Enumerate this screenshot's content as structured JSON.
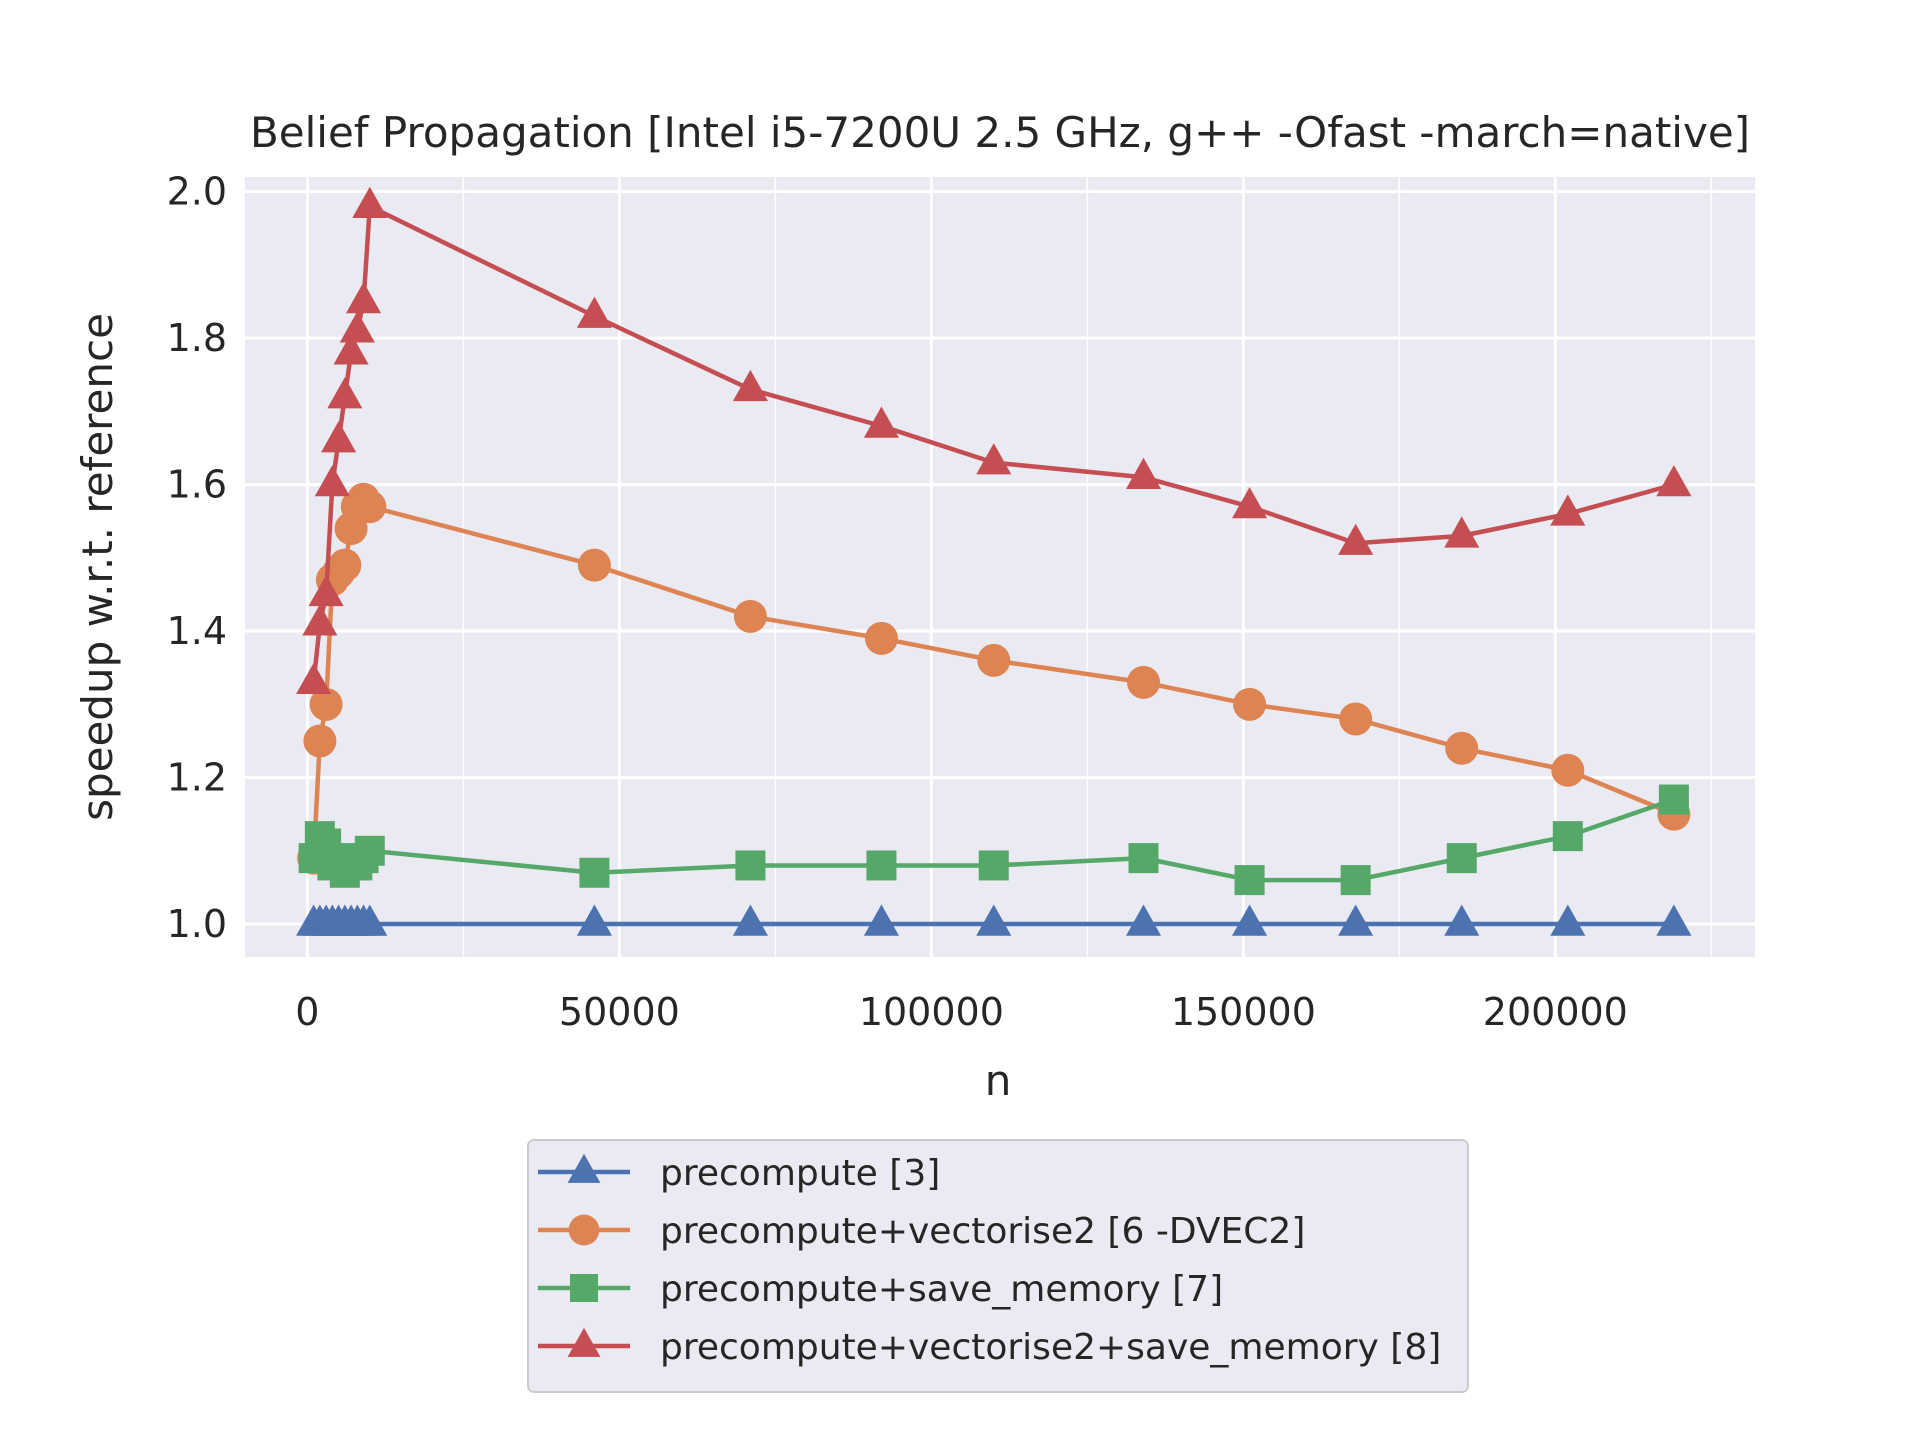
{
  "chart_data": {
    "type": "line",
    "title": "Belief Propagation [Intel i5-7200U 2.5 GHz, g++ -Ofast -march=native]",
    "xlabel": "n",
    "ylabel": "speedup w.r.t. reference",
    "xlim": [
      -10000,
      232000
    ],
    "ylim": [
      0.955,
      2.02
    ],
    "xticks": [
      0,
      50000,
      100000,
      150000,
      200000
    ],
    "xtick_labels": [
      "0",
      "50000",
      "100000",
      "150000",
      "200000"
    ],
    "yticks": [
      1.0,
      1.2,
      1.4,
      1.6,
      1.8,
      2.0
    ],
    "ytick_labels": [
      "1.0",
      "1.2",
      "1.4",
      "1.6",
      "1.8",
      "2.0"
    ],
    "grid": true,
    "legend_position": "below",
    "x": [
      1000,
      2000,
      3000,
      4000,
      5000,
      6000,
      7000,
      8000,
      9000,
      10000,
      46000,
      71000,
      92000,
      110000,
      134000,
      151000,
      168000,
      185000,
      202000,
      219000
    ],
    "series": [
      {
        "name": "precompute [3]",
        "color": "#4c72b0",
        "marker": "triangle",
        "values": [
          1.0,
          1.0,
          1.0,
          1.0,
          1.0,
          1.0,
          1.0,
          1.0,
          1.0,
          1.0,
          1.0,
          1.0,
          1.0,
          1.0,
          1.0,
          1.0,
          1.0,
          1.0,
          1.0,
          1.0
        ]
      },
      {
        "name": "precompute+vectorise2 [6 -DVEC2]",
        "color": "#dd8452",
        "marker": "circle",
        "values": [
          1.09,
          1.25,
          1.3,
          1.47,
          1.48,
          1.49,
          1.54,
          1.57,
          1.58,
          1.57,
          1.49,
          1.42,
          1.39,
          1.36,
          1.33,
          1.3,
          1.28,
          1.24,
          1.21,
          1.15
        ]
      },
      {
        "name": "precompute+save_memory [7]",
        "color": "#55a868",
        "marker": "square",
        "values": [
          1.09,
          1.12,
          1.11,
          1.08,
          1.09,
          1.07,
          1.08,
          1.08,
          1.09,
          1.1,
          1.07,
          1.08,
          1.08,
          1.08,
          1.09,
          1.06,
          1.06,
          1.09,
          1.12,
          1.17
        ]
      },
      {
        "name": "precompute+vectorise2+save_memory [8]",
        "color": "#c44e52",
        "marker": "triangle",
        "values": [
          1.33,
          1.41,
          1.45,
          1.6,
          1.66,
          1.72,
          1.78,
          1.81,
          1.85,
          1.98,
          1.83,
          1.73,
          1.68,
          1.63,
          1.61,
          1.57,
          1.52,
          1.53,
          1.56,
          1.6
        ]
      }
    ]
  }
}
